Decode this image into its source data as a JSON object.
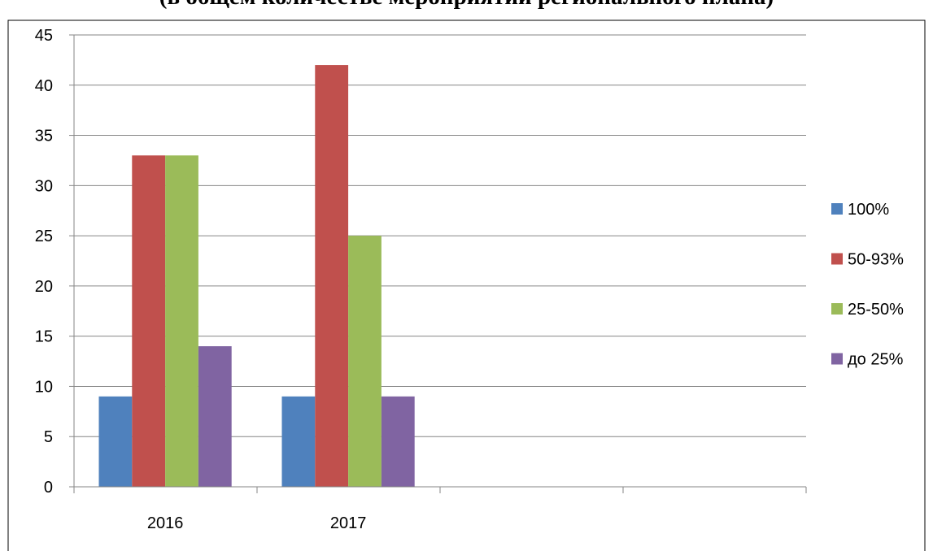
{
  "chart_data": {
    "type": "bar",
    "title": "(в общем количестве мероприятий регионального плана)",
    "categories": [
      "2016",
      "2017",
      "",
      ""
    ],
    "series": [
      {
        "name": "100%",
        "color": "#4F81BD",
        "values": [
          9,
          9,
          null,
          null
        ]
      },
      {
        "name": "50-93%",
        "color": "#C0504D",
        "values": [
          33,
          42,
          null,
          null
        ]
      },
      {
        "name": "25-50%",
        "color": "#9BBB59",
        "values": [
          33,
          25,
          null,
          null
        ]
      },
      {
        "name": "до 25%",
        "color": "#8064A2",
        "values": [
          14,
          9,
          null,
          null
        ]
      }
    ],
    "ylim": [
      0,
      45
    ],
    "yticks": [
      0,
      5,
      10,
      15,
      20,
      25,
      30,
      35,
      40,
      45
    ],
    "grid": true,
    "legend_position": "right"
  }
}
